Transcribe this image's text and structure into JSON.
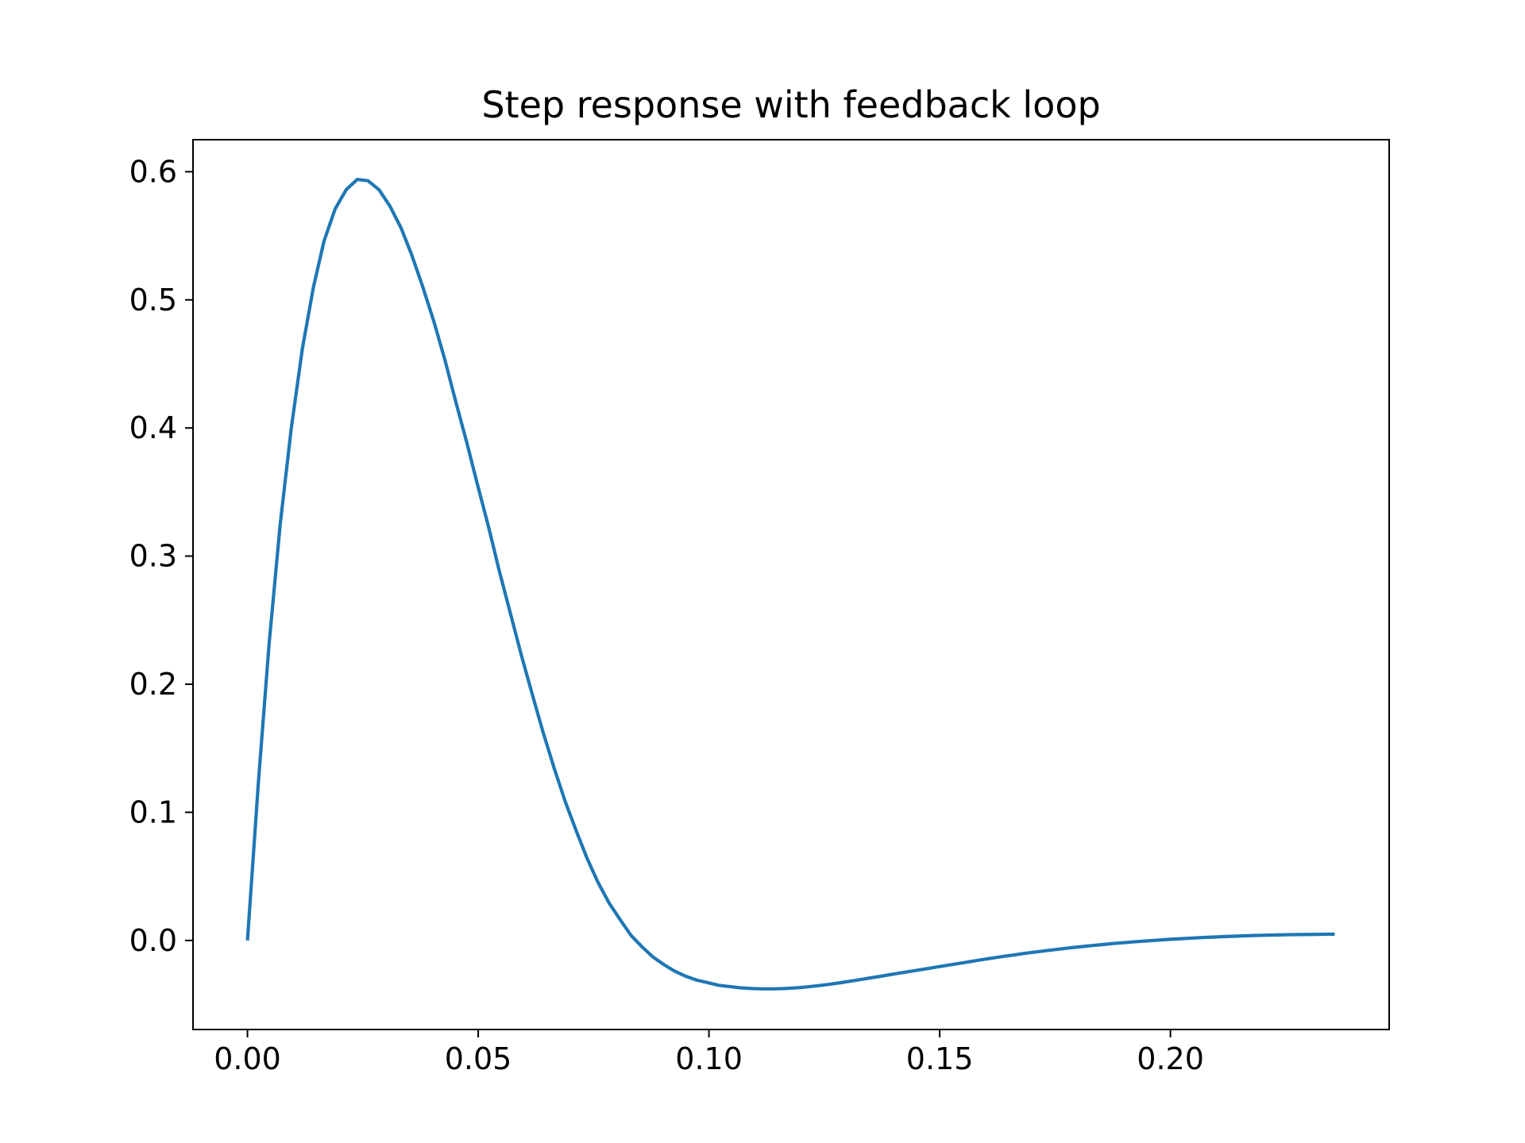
{
  "chart_data": {
    "type": "line",
    "title": "Step response with feedback loop",
    "xlabel": "",
    "ylabel": "",
    "xlim": [
      -0.0118,
      0.2474
    ],
    "ylim": [
      -0.0695,
      0.625
    ],
    "xticks": [
      0.0,
      0.05,
      0.1,
      0.15,
      0.2
    ],
    "xtick_labels": [
      "0.00",
      "0.05",
      "0.10",
      "0.15",
      "0.20"
    ],
    "yticks": [
      0.0,
      0.1,
      0.2,
      0.3,
      0.4,
      0.5,
      0.6
    ],
    "ytick_labels": [
      "0.0",
      "0.1",
      "0.2",
      "0.3",
      "0.4",
      "0.5",
      "0.6"
    ],
    "grid": false,
    "legend": "none",
    "series": [
      {
        "color": "#1f77b4",
        "x": [
          0.0,
          0.0024,
          0.0047,
          0.0071,
          0.0095,
          0.0119,
          0.0143,
          0.0166,
          0.019,
          0.0214,
          0.0238,
          0.0261,
          0.0285,
          0.0309,
          0.0333,
          0.0356,
          0.038,
          0.0404,
          0.0428,
          0.0451,
          0.0475,
          0.0499,
          0.0523,
          0.0546,
          0.057,
          0.0594,
          0.0618,
          0.0641,
          0.0665,
          0.0689,
          0.0713,
          0.0736,
          0.076,
          0.0784,
          0.0808,
          0.0831,
          0.0855,
          0.0879,
          0.0903,
          0.0926,
          0.095,
          0.0974,
          0.0998,
          0.1021,
          0.1045,
          0.1069,
          0.1093,
          0.1116,
          0.114,
          0.1164,
          0.1188,
          0.1211,
          0.1235,
          0.1259,
          0.1283,
          0.1306,
          0.133,
          0.1354,
          0.1378,
          0.1401,
          0.1425,
          0.1449,
          0.1473,
          0.1496,
          0.152,
          0.1544,
          0.1568,
          0.1591,
          0.1615,
          0.1639,
          0.1663,
          0.1686,
          0.171,
          0.1734,
          0.1758,
          0.1781,
          0.1805,
          0.1829,
          0.1853,
          0.1876,
          0.19,
          0.1924,
          0.1948,
          0.1971,
          0.1995,
          0.2019,
          0.2043,
          0.2066,
          0.209,
          0.2114,
          0.2138,
          0.2161,
          0.2185,
          0.2209,
          0.2233,
          0.2256,
          0.228,
          0.2304,
          0.2328,
          0.2351,
          0.2356
        ],
        "y": [
          0.0,
          0.125,
          0.232,
          0.325,
          0.4,
          0.462,
          0.51,
          0.546,
          0.571,
          0.586,
          0.594,
          0.593,
          0.586,
          0.573,
          0.556,
          0.535,
          0.51,
          0.483,
          0.453,
          0.421,
          0.389,
          0.355,
          0.322,
          0.288,
          0.255,
          0.222,
          0.191,
          0.162,
          0.134,
          0.108,
          0.085,
          0.064,
          0.045,
          0.029,
          0.016,
          0.004,
          -0.005,
          -0.013,
          -0.019,
          -0.024,
          -0.028,
          -0.031,
          -0.033,
          -0.035,
          -0.036,
          -0.037,
          -0.0375,
          -0.0378,
          -0.0378,
          -0.0375,
          -0.037,
          -0.0363,
          -0.0354,
          -0.0343,
          -0.0331,
          -0.0318,
          -0.0304,
          -0.029,
          -0.0276,
          -0.0262,
          -0.0248,
          -0.0234,
          -0.022,
          -0.0206,
          -0.0192,
          -0.0178,
          -0.0164,
          -0.015,
          -0.0137,
          -0.0124,
          -0.0112,
          -0.01,
          -0.0089,
          -0.0078,
          -0.0068,
          -0.0058,
          -0.0049,
          -0.004,
          -0.0032,
          -0.0024,
          -0.0017,
          -0.001,
          -0.0004,
          0.0002,
          0.0008,
          0.0013,
          0.0018,
          0.0022,
          0.0026,
          0.003,
          0.0033,
          0.0036,
          0.0039,
          0.0041,
          0.0043,
          0.0045,
          0.0046,
          0.0047,
          0.0048,
          0.0049,
          0.0049
        ]
      }
    ]
  }
}
